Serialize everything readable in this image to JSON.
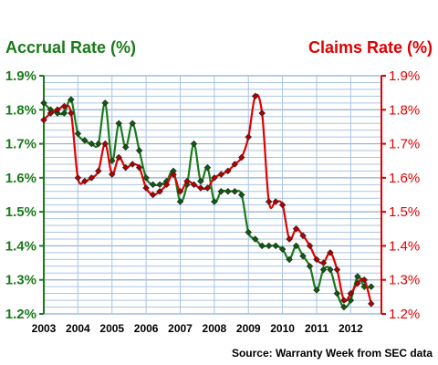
{
  "chart_data": {
    "type": "line",
    "left_axis_title": "Accrual Rate (%)",
    "right_axis_title": "Claims Rate (%)",
    "source": "Source: Warranty Week from SEC data",
    "colors": {
      "accrual": "#1a7a1a",
      "claims": "#e00000",
      "grid": "#a9c4e0",
      "frame": "#808080"
    },
    "ylim": [
      1.2,
      1.9
    ],
    "y_ticks": [
      "1.2%",
      "1.3%",
      "1.4%",
      "1.5%",
      "1.6%",
      "1.7%",
      "1.8%",
      "1.9%"
    ],
    "x_ticks": [
      "2003",
      "2004",
      "2005",
      "2006",
      "2007",
      "2008",
      "2009",
      "2010",
      "2011",
      "2012"
    ],
    "xlim": [
      2003,
      2012.9
    ],
    "series": [
      {
        "key": "accrual",
        "x": [
          2003.0,
          2003.2,
          2003.4,
          2003.6,
          2003.8,
          2004.0,
          2004.2,
          2004.4,
          2004.6,
          2004.8,
          2005.0,
          2005.2,
          2005.4,
          2005.6,
          2005.8,
          2006.0,
          2006.2,
          2006.4,
          2006.6,
          2006.8,
          2007.0,
          2007.2,
          2007.4,
          2007.6,
          2007.8,
          2008.0,
          2008.2,
          2008.4,
          2008.6,
          2008.8,
          2009.0,
          2009.2,
          2009.4,
          2009.6,
          2009.8,
          2010.0,
          2010.2,
          2010.4,
          2010.6,
          2010.8,
          2011.0,
          2011.2,
          2011.4,
          2011.6,
          2011.8,
          2012.0,
          2012.2,
          2012.4,
          2012.6
        ],
        "values": [
          1.82,
          1.8,
          1.79,
          1.79,
          1.83,
          1.73,
          1.71,
          1.7,
          1.7,
          1.82,
          1.65,
          1.76,
          1.69,
          1.76,
          1.68,
          1.6,
          1.58,
          1.58,
          1.59,
          1.62,
          1.53,
          1.58,
          1.7,
          1.59,
          1.63,
          1.53,
          1.56,
          1.56,
          1.56,
          1.55,
          1.44,
          1.42,
          1.4,
          1.4,
          1.4,
          1.39,
          1.36,
          1.4,
          1.37,
          1.34,
          1.27,
          1.33,
          1.33,
          1.26,
          1.22,
          1.24,
          1.31,
          1.28,
          1.28
        ]
      },
      {
        "key": "claims",
        "x": [
          2003.0,
          2003.2,
          2003.4,
          2003.6,
          2003.8,
          2004.0,
          2004.2,
          2004.4,
          2004.6,
          2004.8,
          2005.0,
          2005.2,
          2005.4,
          2005.6,
          2005.8,
          2006.0,
          2006.2,
          2006.4,
          2006.6,
          2006.8,
          2007.0,
          2007.2,
          2007.4,
          2007.6,
          2007.8,
          2008.0,
          2008.2,
          2008.4,
          2008.6,
          2008.8,
          2009.0,
          2009.2,
          2009.4,
          2009.6,
          2009.8,
          2010.0,
          2010.2,
          2010.4,
          2010.6,
          2010.8,
          2011.0,
          2011.2,
          2011.4,
          2011.6,
          2011.8,
          2012.0,
          2012.2,
          2012.4,
          2012.6
        ],
        "values": [
          1.77,
          1.79,
          1.8,
          1.81,
          1.79,
          1.6,
          1.59,
          1.6,
          1.62,
          1.7,
          1.61,
          1.66,
          1.63,
          1.64,
          1.63,
          1.57,
          1.55,
          1.56,
          1.58,
          1.61,
          1.56,
          1.59,
          1.58,
          1.57,
          1.57,
          1.6,
          1.61,
          1.62,
          1.64,
          1.66,
          1.72,
          1.84,
          1.79,
          1.53,
          1.53,
          1.52,
          1.42,
          1.45,
          1.43,
          1.4,
          1.36,
          1.35,
          1.38,
          1.33,
          1.24,
          1.26,
          1.29,
          1.3,
          1.23
        ]
      }
    ]
  }
}
